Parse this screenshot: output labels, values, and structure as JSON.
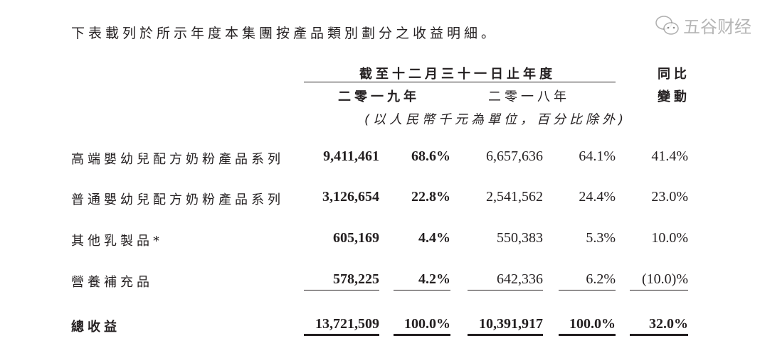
{
  "intro": "下表載列於所示年度本集團按產品類別劃分之收益明細。",
  "header": {
    "period": "截至十二月三十一日止年度",
    "year1": "二零一九年",
    "year2": "二零一八年",
    "unit_note": "(以人民幣千元為單位，百分比除外)",
    "change_line1": "同比",
    "change_line2": "變動"
  },
  "rows": [
    {
      "label": "高端嬰幼兒配方奶粉產品系列",
      "v2019": "9,411,461",
      "p2019": "68.6%",
      "v2018": "6,657,636",
      "p2018": "64.1%",
      "change": "41.4%"
    },
    {
      "label": "普通嬰幼兒配方奶粉產品系列",
      "v2019": "3,126,654",
      "p2019": "22.8%",
      "v2018": "2,541,562",
      "p2018": "24.4%",
      "change": "23.0%"
    },
    {
      "label": "其他乳製品*",
      "v2019": "605,169",
      "p2019": "4.4%",
      "v2018": "550,383",
      "p2018": "5.3%",
      "change": "10.0%"
    },
    {
      "label": "營養補充品",
      "v2019": "578,225",
      "p2019": "4.2%",
      "v2018": "642,336",
      "p2018": "6.2%",
      "change": "(10.0)%"
    }
  ],
  "total": {
    "label": "總收益",
    "v2019": "13,721,509",
    "p2019": "100.0%",
    "v2018": "10,391,917",
    "p2018": "100.0%",
    "change": "32.0%"
  },
  "watermark": {
    "text": "五谷财经",
    "icon": "wechat-icon"
  }
}
